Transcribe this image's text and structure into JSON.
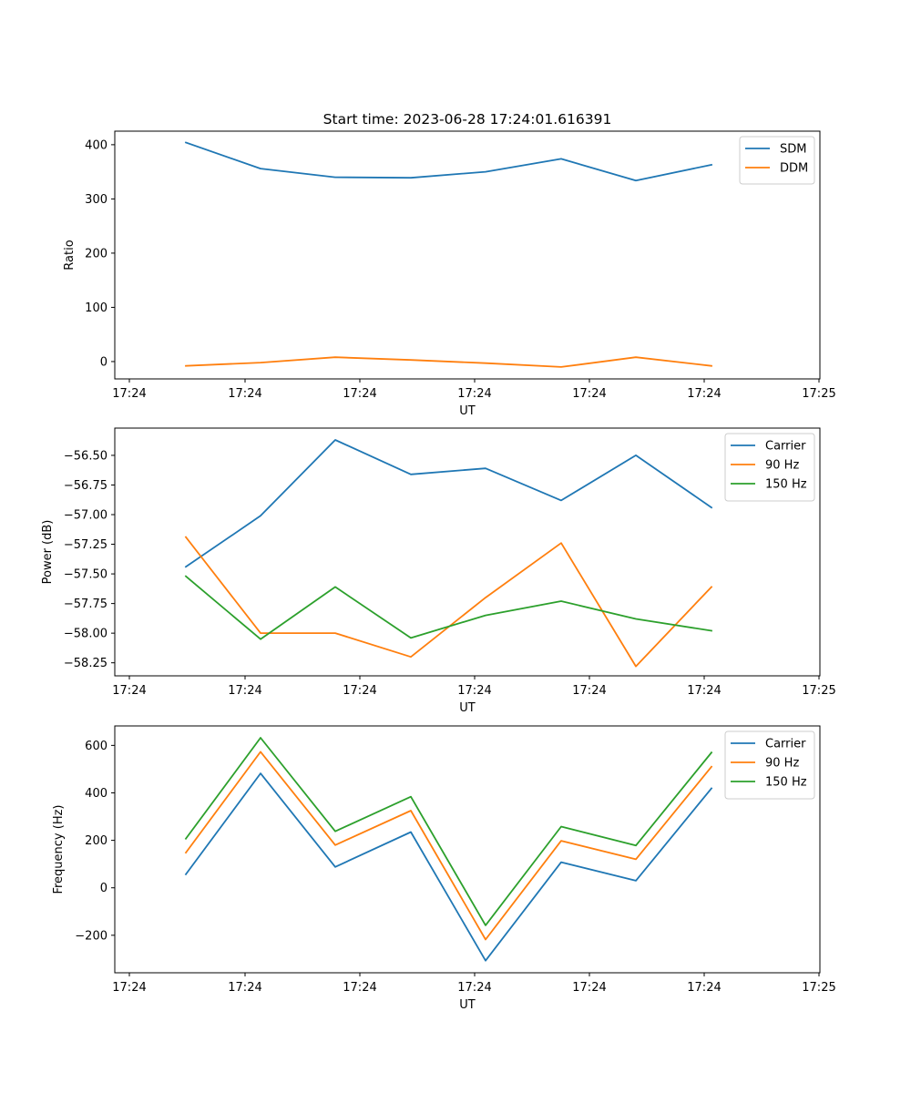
{
  "colors": {
    "blue": "#1f77b4",
    "orange": "#ff7f0e",
    "green": "#2ca02c"
  },
  "chart_data": [
    {
      "type": "line",
      "title": "Start time: 2023-06-28 17:24:01.616391",
      "xlabel": "UT",
      "ylabel": "Ratio",
      "xticks": [
        "17:24",
        "17:24",
        "17:24",
        "17:24",
        "17:24",
        "17:24",
        "17:24"
      ],
      "yticks": [
        "400",
        "300",
        "200",
        "100",
        "0"
      ],
      "ylim": [
        -32,
        425
      ],
      "legend": "top-right",
      "series": [
        {
          "name": "SDM",
          "color": "#1f77b4",
          "values": [
            404,
            356,
            340,
            339,
            350,
            374,
            334,
            363
          ]
        },
        {
          "name": "DDM",
          "color": "#ff7f0e",
          "values": [
            -8,
            -2,
            8,
            3,
            -3,
            -10,
            8,
            -8
          ]
        }
      ]
    },
    {
      "type": "line",
      "title": "",
      "xlabel": "UT",
      "ylabel": "Power (dB)",
      "xticks": [
        "17:24",
        "17:24",
        "17:24",
        "17:24",
        "17:24",
        "17:24",
        "17:25"
      ],
      "yticks": [
        "−56.50",
        "−56.75",
        "−57.00",
        "−57.25",
        "−57.50",
        "−57.75",
        "−58.00",
        "−58.25"
      ],
      "ylim": [
        -58.36,
        -56.27
      ],
      "legend": "top-right",
      "series": [
        {
          "name": "Carrier",
          "color": "#1f77b4",
          "values": [
            -57.44,
            -57.01,
            -56.37,
            -56.66,
            -56.61,
            -56.88,
            -56.5,
            -56.94
          ]
        },
        {
          "name": "90 Hz",
          "color": "#ff7f0e",
          "values": [
            -57.19,
            -58.0,
            -58.0,
            -58.2,
            -57.7,
            -57.24,
            -58.28,
            -57.61
          ]
        },
        {
          "name": "150 Hz",
          "color": "#2ca02c",
          "values": [
            -57.52,
            -58.05,
            -57.61,
            -58.04,
            -57.85,
            -57.73,
            -57.88,
            -57.98
          ]
        }
      ]
    },
    {
      "type": "line",
      "title": "",
      "xlabel": "UT",
      "ylabel": "Frequency (Hz)",
      "xticks": [
        "17:24",
        "17:24",
        "17:24",
        "17:24",
        "17:24",
        "17:24",
        "17:24"
      ],
      "yticks": [
        "600",
        "400",
        "200",
        "0",
        "−200"
      ],
      "ylim": [
        -358,
        682
      ],
      "legend": "top-right",
      "series": [
        {
          "name": "Carrier",
          "color": "#1f77b4",
          "values": [
            57,
            482,
            88,
            235,
            -307,
            108,
            30,
            419
          ]
        },
        {
          "name": "90 Hz",
          "color": "#ff7f0e",
          "values": [
            148,
            573,
            180,
            325,
            -218,
            198,
            120,
            510
          ]
        },
        {
          "name": "150 Hz",
          "color": "#2ca02c",
          "values": [
            207,
            632,
            238,
            384,
            -158,
            258,
            178,
            570
          ]
        }
      ]
    }
  ],
  "last_xtick": "17:25"
}
